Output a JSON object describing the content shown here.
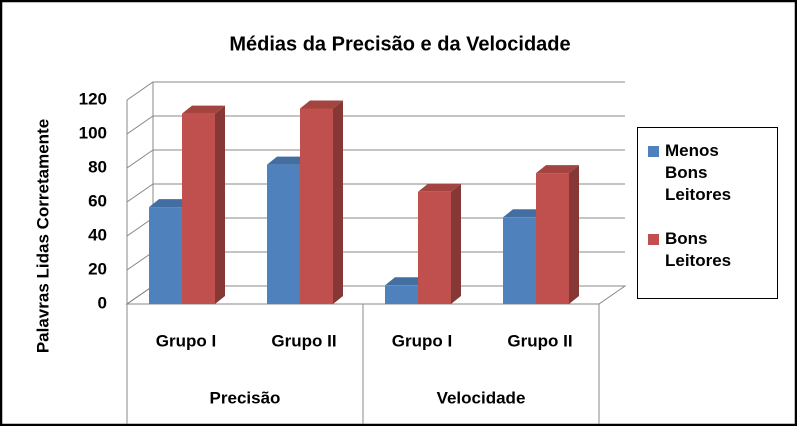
{
  "chart_data": {
    "type": "bar3d",
    "title": "Médias  da Precisão e da Velocidade",
    "y_label": "Palavras Lidas Corretamente",
    "categories": [
      "Grupo I",
      "Grupo II",
      "Grupo I",
      "Grupo II"
    ],
    "category_groups": [
      "Precisão",
      "Velocidade"
    ],
    "series": [
      {
        "name": "Menos Bons Leitores",
        "color": "#4f81bd",
        "values": [
          57,
          82,
          11,
          51
        ]
      },
      {
        "name": "Bons Leitores",
        "color": "#c0504d",
        "values": [
          112,
          115,
          66,
          77
        ]
      }
    ],
    "ylim": [
      0,
      120
    ],
    "yticks": [
      0,
      20,
      40,
      60,
      80,
      100,
      120
    ],
    "grid": true,
    "legend": "right"
  }
}
